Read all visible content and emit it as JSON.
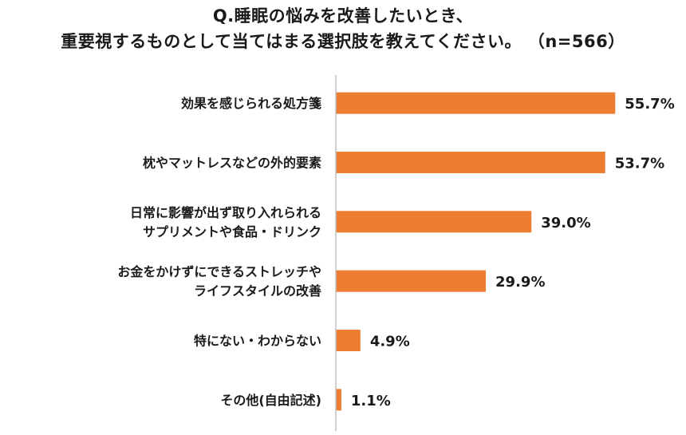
{
  "title": {
    "line1": "Q.睡眠の悩みを改善したいとき、",
    "line2": "重要視するものとして当てはまる選択肢を教えてください。 （n=566）"
  },
  "chart_data": {
    "type": "bar",
    "orientation": "horizontal",
    "categories": [
      [
        "効果を感じられる処方箋"
      ],
      [
        "枕やマットレスなどの外的要素"
      ],
      [
        "日常に影響が出ず取り入れられる",
        "サプリメントや食品・ドリンク"
      ],
      [
        "お金をかけずにできるストレッチや",
        "ライフスタイルの改善"
      ],
      [
        "特にない・わからない"
      ],
      [
        "その他(自由記述)"
      ]
    ],
    "values": [
      55.7,
      53.7,
      39.0,
      29.9,
      4.9,
      1.1
    ],
    "value_labels": [
      "55.7%",
      "53.7%",
      "39.0%",
      "29.9%",
      "4.9%",
      "1.1%"
    ],
    "xlim": [
      0,
      60
    ],
    "bar_color": "#ED7D31",
    "axis_color": "#bfbfbf",
    "grid": false,
    "legend": "none"
  }
}
